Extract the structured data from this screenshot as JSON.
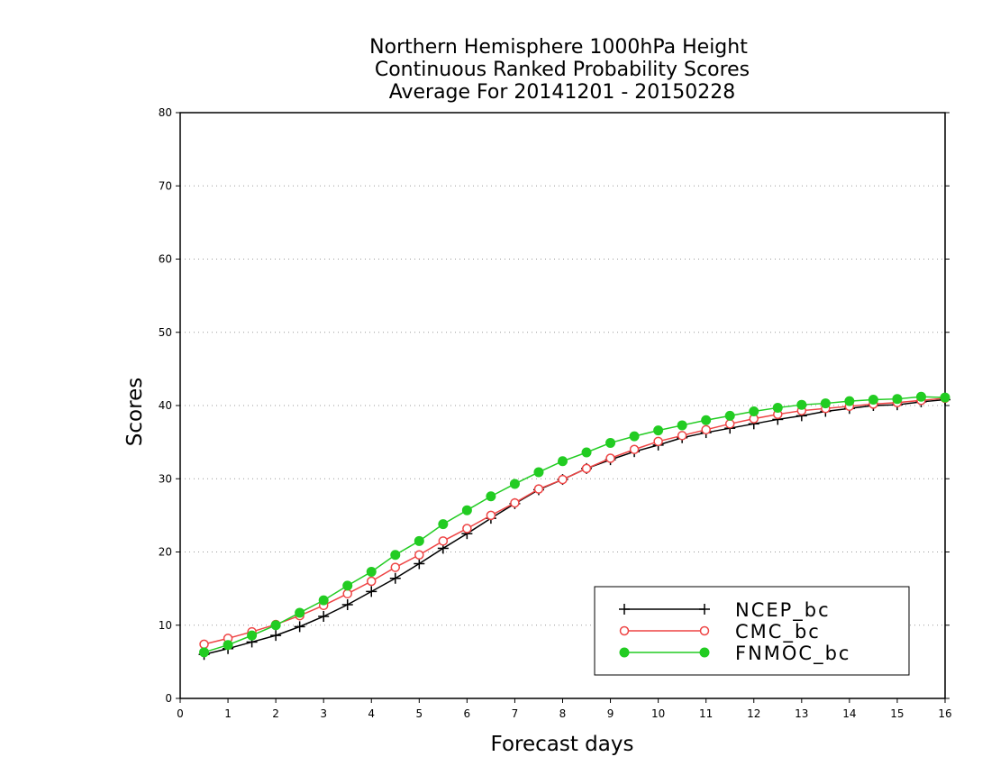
{
  "chart_data": {
    "type": "line",
    "title": [
      "Northern Hemisphere 1000hPa Height",
      "Continuous Ranked Probability Scores",
      "Average For 20141201 - 20150228"
    ],
    "xlabel": "Forecast days",
    "ylabel": "Scores",
    "xlim": [
      0,
      16
    ],
    "ylim": [
      0,
      80
    ],
    "xticks": [
      0,
      1,
      2,
      3,
      4,
      5,
      6,
      7,
      8,
      9,
      10,
      11,
      12,
      13,
      14,
      15,
      16
    ],
    "yticks": [
      0,
      10,
      20,
      30,
      40,
      50,
      60,
      70,
      80
    ],
    "grid": "horizontal dotted",
    "legend_position": "bottom-right",
    "x": [
      0.5,
      1,
      1.5,
      2,
      2.5,
      3,
      3.5,
      4,
      4.5,
      5,
      5.5,
      6,
      6.5,
      7,
      7.5,
      8,
      8.5,
      9,
      9.5,
      10,
      10.5,
      11,
      11.5,
      12,
      12.5,
      13,
      13.5,
      14,
      14.5,
      15,
      15.5,
      16
    ],
    "series": [
      {
        "name": "NCEP_bc",
        "color": "#000000",
        "marker": "plus",
        "values": [
          6.0,
          6.8,
          7.7,
          8.6,
          9.8,
          11.2,
          12.8,
          14.6,
          16.4,
          18.4,
          20.5,
          22.5,
          24.6,
          26.6,
          28.5,
          29.9,
          31.4,
          32.6,
          33.7,
          34.6,
          35.6,
          36.3,
          36.9,
          37.5,
          38.1,
          38.6,
          39.2,
          39.6,
          40.0,
          40.1,
          40.5,
          40.8
        ]
      },
      {
        "name": "CMC_bc",
        "color": "#ee4444",
        "marker": "open-circle",
        "values": [
          7.4,
          8.2,
          9.1,
          10.1,
          11.3,
          12.7,
          14.3,
          16.0,
          17.9,
          19.6,
          21.5,
          23.2,
          25.0,
          26.7,
          28.6,
          29.9,
          31.4,
          32.8,
          34.0,
          35.1,
          35.9,
          36.7,
          37.5,
          38.2,
          38.8,
          39.3,
          39.6,
          39.9,
          40.2,
          40.4,
          40.7,
          41.0
        ]
      },
      {
        "name": "FNMOC_bc",
        "color": "#22cc22",
        "marker": "filled-circle",
        "values": [
          6.3,
          7.3,
          8.6,
          10.0,
          11.7,
          13.4,
          15.4,
          17.3,
          19.6,
          21.5,
          23.8,
          25.7,
          27.6,
          29.3,
          30.9,
          32.4,
          33.6,
          34.9,
          35.8,
          36.6,
          37.3,
          38.0,
          38.6,
          39.2,
          39.7,
          40.1,
          40.3,
          40.6,
          40.8,
          40.9,
          41.2,
          41.1
        ]
      }
    ]
  }
}
